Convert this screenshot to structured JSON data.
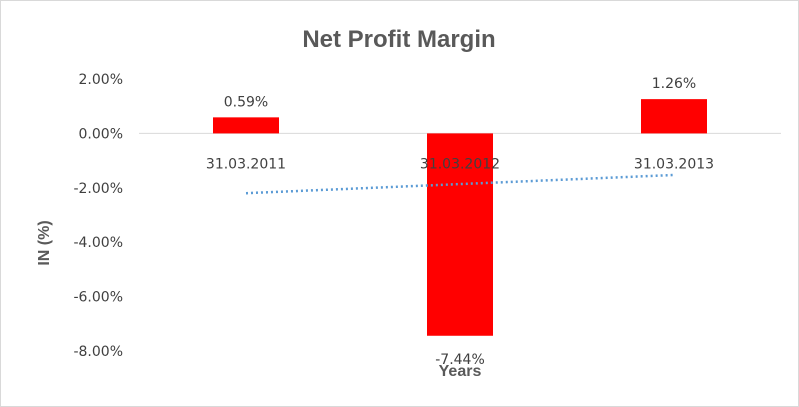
{
  "chart_data": {
    "type": "bar",
    "title": "Net Profit Margin",
    "xlabel": "Years",
    "ylabel": "IN (%)",
    "categories": [
      "31.03.2011",
      "31.03.2012",
      "31.03.2013"
    ],
    "values": [
      0.59,
      -7.44,
      1.26
    ],
    "data_labels": [
      "0.59%",
      "-7.44%",
      "1.26%"
    ],
    "ylim": [
      -8,
      2
    ],
    "yticks": [
      2,
      0,
      -2,
      -4,
      -6,
      -8
    ],
    "ytick_labels": [
      "2.00%",
      "0.00%",
      "-2.00%",
      "-4.00%",
      "-6.00%",
      "-8.00%"
    ],
    "bar_color": "#ff0000",
    "trendline": {
      "type": "linear",
      "style": "dotted",
      "color": "#5b9bd5"
    },
    "grid": false,
    "legend": "none"
  }
}
